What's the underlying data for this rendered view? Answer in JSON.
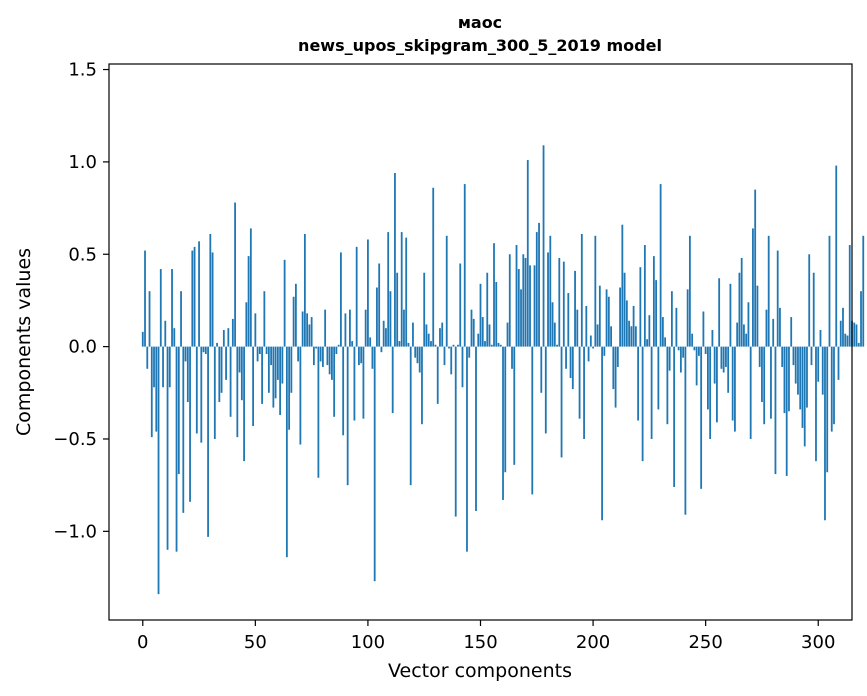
{
  "chart_data": {
    "type": "bar",
    "title": "маос",
    "subtitle": "news_upos_skipgram_300_5_2019 model",
    "xlabel": "Vector components",
    "ylabel": "Components values",
    "xlim": [
      -15,
      315
    ],
    "ylim": [
      -1.48,
      1.53
    ],
    "x_ticks": [
      0,
      50,
      100,
      150,
      200,
      250,
      300
    ],
    "x_tick_labels": [
      "0",
      "50",
      "100",
      "150",
      "200",
      "250",
      "300"
    ],
    "y_ticks": [
      -1.0,
      -0.5,
      0.0,
      0.5,
      1.0,
      1.5
    ],
    "y_tick_labels": [
      "−1.0",
      "−0.5",
      "0.0",
      "0.5",
      "1.0",
      "1.5"
    ],
    "color": "#1f77b4",
    "values": [
      0.08,
      0.52,
      -0.12,
      0.3,
      -0.49,
      -0.22,
      -0.46,
      -1.34,
      0.42,
      -0.22,
      0.14,
      -1.1,
      -0.22,
      0.42,
      0.1,
      -1.11,
      -0.69,
      0.3,
      -0.9,
      -0.08,
      -0.3,
      -0.84,
      0.52,
      0.54,
      -0.47,
      0.57,
      -0.52,
      -0.03,
      -0.04,
      -1.03,
      0.61,
      0.51,
      -0.5,
      0.02,
      -0.3,
      -0.25,
      0.09,
      -0.18,
      0.1,
      -0.38,
      0.15,
      0.78,
      -0.49,
      -0.14,
      -0.29,
      -0.62,
      0.24,
      0.49,
      0.64,
      -0.43,
      0.18,
      -0.08,
      -0.04,
      -0.31,
      0.3,
      -0.04,
      -0.25,
      -0.1,
      -0.33,
      -0.28,
      -0.18,
      -0.37,
      -0.2,
      0.47,
      -1.14,
      -0.45,
      -0.25,
      0.27,
      0.34,
      -0.08,
      -0.53,
      0.19,
      0.61,
      0.18,
      0.12,
      0.16,
      -0.1,
      -0.01,
      -0.71,
      -0.08,
      -0.11,
      0.2,
      -0.1,
      -0.15,
      -0.18,
      -0.38,
      -0.04,
      0.01,
      0.51,
      -0.48,
      0.18,
      -0.75,
      0.2,
      0.03,
      -0.4,
      0.54,
      -0.1,
      -0.09,
      -0.39,
      0.2,
      0.58,
      0.05,
      -0.12,
      -1.27,
      0.32,
      0.45,
      -0.03,
      0.14,
      0.1,
      0.62,
      0.3,
      -0.36,
      0.94,
      0.4,
      0.03,
      0.62,
      0.2,
      0.59,
      0.02,
      -0.75,
      0.13,
      -0.06,
      -0.09,
      -0.14,
      -0.42,
      0.4,
      0.12,
      0.07,
      0.03,
      0.86,
      0.01,
      -0.31,
      0.1,
      0.13,
      -0.1,
      0.6,
      -0.01,
      -0.15,
      0.01,
      -0.92,
      0.01,
      0.45,
      -0.22,
      0.88,
      -1.11,
      -0.06,
      0.2,
      0.15,
      -0.89,
      0.07,
      0.34,
      0.16,
      0.03,
      0.4,
      0.12,
      0.01,
      0.56,
      0.35,
      0.02,
      0.01,
      -0.83,
      -0.68,
      0.13,
      0.5,
      -0.12,
      -0.64,
      0.55,
      0.42,
      0.31,
      0.5,
      0.48,
      1.01,
      0.44,
      -0.8,
      0.44,
      0.62,
      0.67,
      -0.25,
      1.09,
      -0.47,
      0.51,
      0.6,
      0.24,
      0.13,
      0.01,
      0.48,
      -0.6,
      0.46,
      -0.12,
      0.29,
      -0.17,
      -0.23,
      0.41,
      0.2,
      -0.39,
      0.61,
      -0.5,
      0.22,
      -0.08,
      0.06,
      -0.01,
      0.6,
      0.12,
      0.33,
      -0.94,
      -0.05,
      0.31,
      0.27,
      0.11,
      -0.23,
      -0.33,
      -0.11,
      0.32,
      0.66,
      0.4,
      0.25,
      0.14,
      0.11,
      0.22,
      0.11,
      -0.4,
      0.43,
      -0.62,
      0.55,
      0.04,
      0.17,
      -0.5,
      0.49,
      0.36,
      -0.34,
      0.88,
      0.16,
      0.05,
      -0.42,
      -0.13,
      0.3,
      -0.76,
      0.21,
      -0.02,
      -0.14,
      -0.06,
      -0.91,
      0.31,
      0.6,
      0.07,
      -0.02,
      -0.21,
      -0.05,
      -0.77,
      0.19,
      -0.04,
      -0.34,
      -0.5,
      0.09,
      -0.2,
      -0.41,
      0.37,
      -0.12,
      -0.14,
      -0.11,
      -0.25,
      0.34,
      -0.4,
      -0.46,
      0.13,
      0.4,
      0.48,
      0.12,
      0.07,
      0.24,
      -0.5,
      0.64,
      0.85,
      0.33,
      -0.11,
      -0.3,
      -0.42,
      0.2,
      0.6,
      -0.39,
      0.15,
      -0.69,
      0.52,
      0.21,
      -0.11,
      -0.36,
      -0.7,
      -0.35,
      0.16,
      -0.1,
      -0.2,
      -0.26,
      -0.34,
      -0.44,
      -0.54,
      -0.33,
      0.5,
      -0.1,
      0.4,
      -0.62,
      -0.19,
      0.09,
      -0.26,
      -0.94,
      -0.68,
      0.6,
      -0.46,
      -0.42,
      0.98,
      -0.18,
      0.14,
      0.21,
      0.07,
      0.06,
      0.55,
      0.14,
      0.13,
      0.12,
      0.02,
      0.3,
      0.6
    ]
  }
}
